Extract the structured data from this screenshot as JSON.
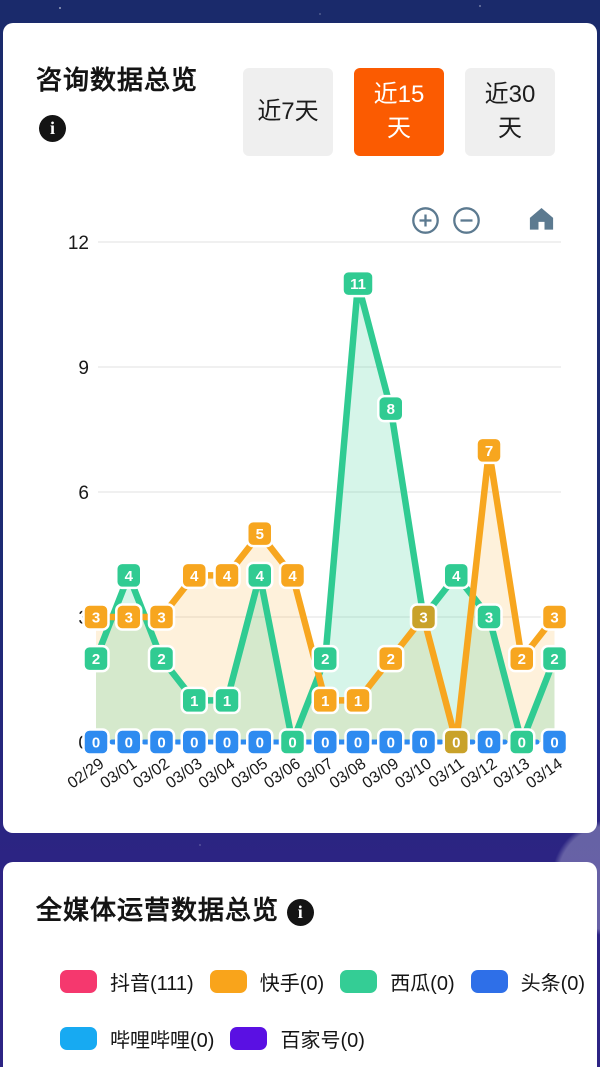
{
  "overview_card": {
    "title": "咨询数据总览",
    "info_icon": "info-icon",
    "tabs": [
      {
        "label": "近7天",
        "active": false
      },
      {
        "label": "近15天",
        "active": true
      },
      {
        "label": "近30天",
        "active": false
      }
    ],
    "controls": {
      "zoom_in": "zoom-in-icon",
      "zoom_out": "zoom-out-icon",
      "home": "home-icon"
    },
    "active_tab_color": "#fb5b01",
    "inactive_tab_color": "#efefef",
    "control_icon_color": "#5c7a90"
  },
  "chart_data": {
    "type": "line",
    "x": [
      "02/29",
      "03/01",
      "03/02",
      "03/03",
      "03/04",
      "03/05",
      "03/06",
      "03/07",
      "03/08",
      "03/09",
      "03/10",
      "03/11",
      "03/12",
      "03/13",
      "03/14"
    ],
    "series": [
      {
        "name": "快手",
        "color": "#f7a61f",
        "fill": "rgba(247,166,31,0.16)",
        "values": [
          3,
          3,
          3,
          4,
          4,
          5,
          4,
          1,
          1,
          2,
          3,
          0,
          7,
          2,
          3
        ]
      },
      {
        "name": "西瓜",
        "color": "#30cb92",
        "fill": "rgba(48,203,146,0.20)",
        "values": [
          2,
          4,
          2,
          1,
          1,
          4,
          0,
          2,
          11,
          8,
          3,
          4,
          3,
          0,
          2
        ]
      },
      {
        "name": "头条",
        "color": "#2e8bf0",
        "dashed": true,
        "values": [
          0,
          0,
          0,
          0,
          0,
          0,
          0,
          0,
          0,
          0,
          0,
          0,
          0,
          0,
          0
        ]
      }
    ],
    "ylim": [
      0,
      12
    ],
    "yticks": [
      0,
      3,
      6,
      9,
      12
    ],
    "grid": true,
    "overlap_label_color": "#c9a22a",
    "label_text_color": "#ffffff",
    "axis_text_color": "#1a1a1a",
    "gridline_color": "#e2e2e2"
  },
  "media_card": {
    "title": "全媒体运营数据总览",
    "legend": [
      {
        "label": "抖音(111)",
        "color": "#f5386e"
      },
      {
        "label": "快手(0)",
        "color": "#f9a41b"
      },
      {
        "label": "西瓜(0)",
        "color": "#34cd95"
      },
      {
        "label": "头条(0)",
        "color": "#2e6fe8"
      },
      {
        "label": "哔哩哔哩(0)",
        "color": "#17aaf2"
      },
      {
        "label": "百家号(0)",
        "color": "#5a10e3"
      }
    ],
    "legend_row_split": 4
  }
}
